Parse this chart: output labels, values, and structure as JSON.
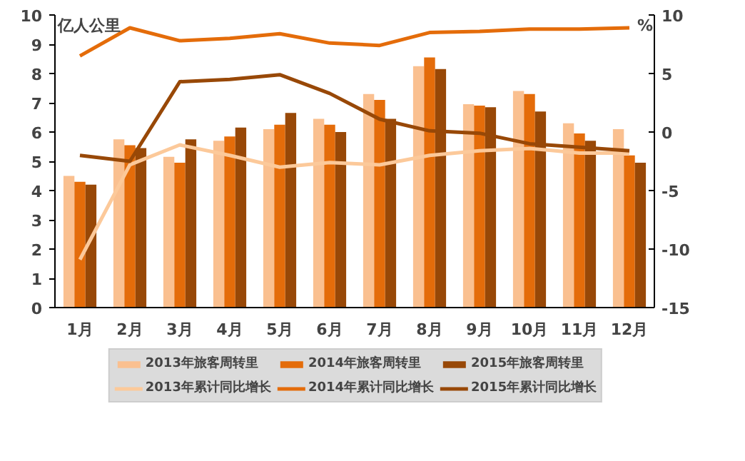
{
  "chart_data": {
    "type": "bar",
    "ylabel": "亿人公里",
    "y2label": "%",
    "categories": [
      "1月",
      "2月",
      "3月",
      "4月",
      "5月",
      "6月",
      "7月",
      "8月",
      "9月",
      "10月",
      "11月",
      "12月"
    ],
    "ylim": [
      0,
      10
    ],
    "yticks": [
      0,
      1,
      2,
      3,
      4,
      5,
      6,
      7,
      8,
      9,
      10
    ],
    "y2lim": [
      -15,
      10
    ],
    "y2ticks": [
      -15,
      -10,
      -5,
      0,
      5,
      10
    ],
    "grid": false,
    "legend": "bottom",
    "series": [
      {
        "name": "2013年旅客周转里",
        "color": "#fac090",
        "values": [
          4.5,
          5.75,
          5.15,
          5.7,
          6.1,
          6.45,
          7.3,
          8.25,
          6.95,
          7.4,
          6.3,
          6.1
        ]
      },
      {
        "name": "2014年旅客周转里",
        "color": "#e46c0a",
        "values": [
          4.3,
          5.55,
          4.95,
          5.85,
          6.25,
          6.25,
          7.1,
          8.55,
          6.9,
          7.3,
          5.95,
          5.2
        ]
      },
      {
        "name": "2015年旅客周转里",
        "color": "#984807",
        "values": [
          4.2,
          5.45,
          5.75,
          6.15,
          6.65,
          6.0,
          6.45,
          8.15,
          6.85,
          6.7,
          5.7,
          4.95
        ]
      },
      {
        "name": "2013年累计同比增长",
        "type": "line",
        "axis": "y2",
        "color": "#fcc99a",
        "values": [
          -10.9,
          -2.8,
          -1.1,
          -2.0,
          -3.0,
          -2.6,
          -2.8,
          -2.0,
          -1.6,
          -1.4,
          -1.8,
          -1.8
        ]
      },
      {
        "name": "2014年累计同比增长",
        "type": "line",
        "axis": "y2",
        "color": "#e46c0a",
        "values": [
          6.5,
          8.9,
          7.8,
          8.0,
          8.4,
          7.6,
          7.4,
          8.5,
          8.6,
          8.8,
          8.8,
          8.9
        ]
      },
      {
        "name": "2015年累计同比增长",
        "type": "line",
        "axis": "y2",
        "color": "#984807",
        "values": [
          -2.0,
          -2.5,
          4.3,
          4.5,
          4.9,
          3.3,
          1.1,
          0.1,
          -0.1,
          -1.0,
          -1.3,
          -1.6
        ]
      }
    ]
  }
}
